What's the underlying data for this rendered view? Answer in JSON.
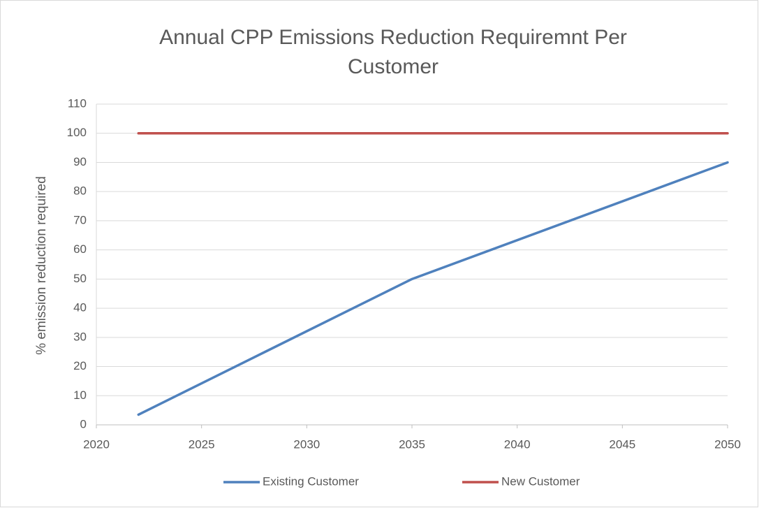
{
  "chart_data": {
    "type": "line",
    "title": "Annual CPP Emissions Reduction Requiremnt Per Customer",
    "y_label": "% emission reduction required",
    "x": [
      2022,
      2035,
      2050
    ],
    "series": [
      {
        "name": "Existing Customer",
        "color": "#4f81bd",
        "values": [
          3.5,
          50,
          90
        ]
      },
      {
        "name": "New Customer",
        "color": "#c0504d",
        "values": [
          100,
          100,
          100
        ]
      }
    ],
    "xlim": [
      2020,
      2050
    ],
    "xticks": [
      2020,
      2025,
      2030,
      2035,
      2040,
      2045,
      2050
    ],
    "ylim": [
      0,
      110
    ],
    "yticks": [
      0,
      10,
      20,
      30,
      40,
      50,
      60,
      70,
      80,
      90,
      100,
      110
    ],
    "grid": true,
    "legend": "bottom"
  }
}
